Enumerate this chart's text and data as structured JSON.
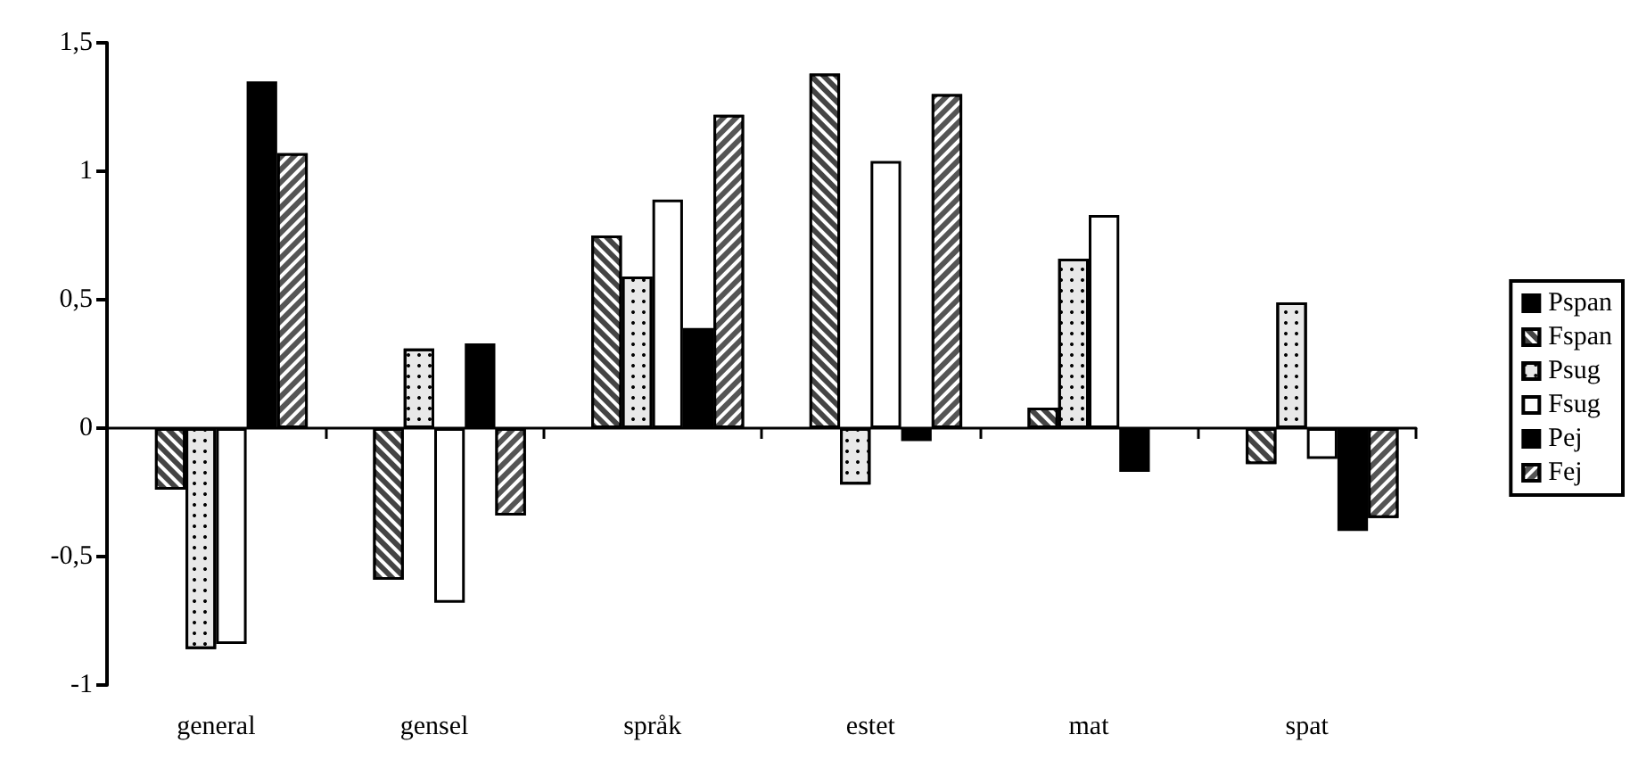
{
  "chart_data": {
    "type": "bar",
    "categories": [
      "general",
      "gensel",
      "språk",
      "estet",
      "mat",
      "spat"
    ],
    "series": [
      {
        "name": "Pspan",
        "color": "#000000",
        "values": [
          null,
          null,
          null,
          null,
          null,
          null
        ]
      },
      {
        "name": "Fspan",
        "color": "#444444",
        "values": [
          -0.24,
          -0.59,
          0.75,
          1.38,
          0.08,
          -0.14
        ]
      },
      {
        "name": "Psug",
        "color": "#e8e8e8",
        "values": [
          -0.86,
          0.31,
          0.59,
          -0.22,
          0.66,
          0.49
        ]
      },
      {
        "name": "Fsug",
        "color": "#ffffff",
        "values": [
          -0.84,
          -0.68,
          0.89,
          1.04,
          0.83,
          -0.12
        ]
      },
      {
        "name": "Pej",
        "color": "#000000",
        "values": [
          1.35,
          0.33,
          0.39,
          -0.05,
          -0.17,
          -0.4
        ]
      },
      {
        "name": "Fej",
        "color": "#555555",
        "values": [
          1.07,
          -0.34,
          1.22,
          1.3,
          null,
          -0.35
        ]
      }
    ],
    "ylim": [
      -1,
      1.5
    ],
    "yticks": [
      {
        "value": -1,
        "label": "-1"
      },
      {
        "value": -0.5,
        "label": "-0,5"
      },
      {
        "value": 0,
        "label": "0"
      },
      {
        "value": 0.5,
        "label": "0,5"
      },
      {
        "value": 1,
        "label": "1"
      },
      {
        "value": 1.5,
        "label": "1,5"
      }
    ],
    "legend": "right"
  }
}
